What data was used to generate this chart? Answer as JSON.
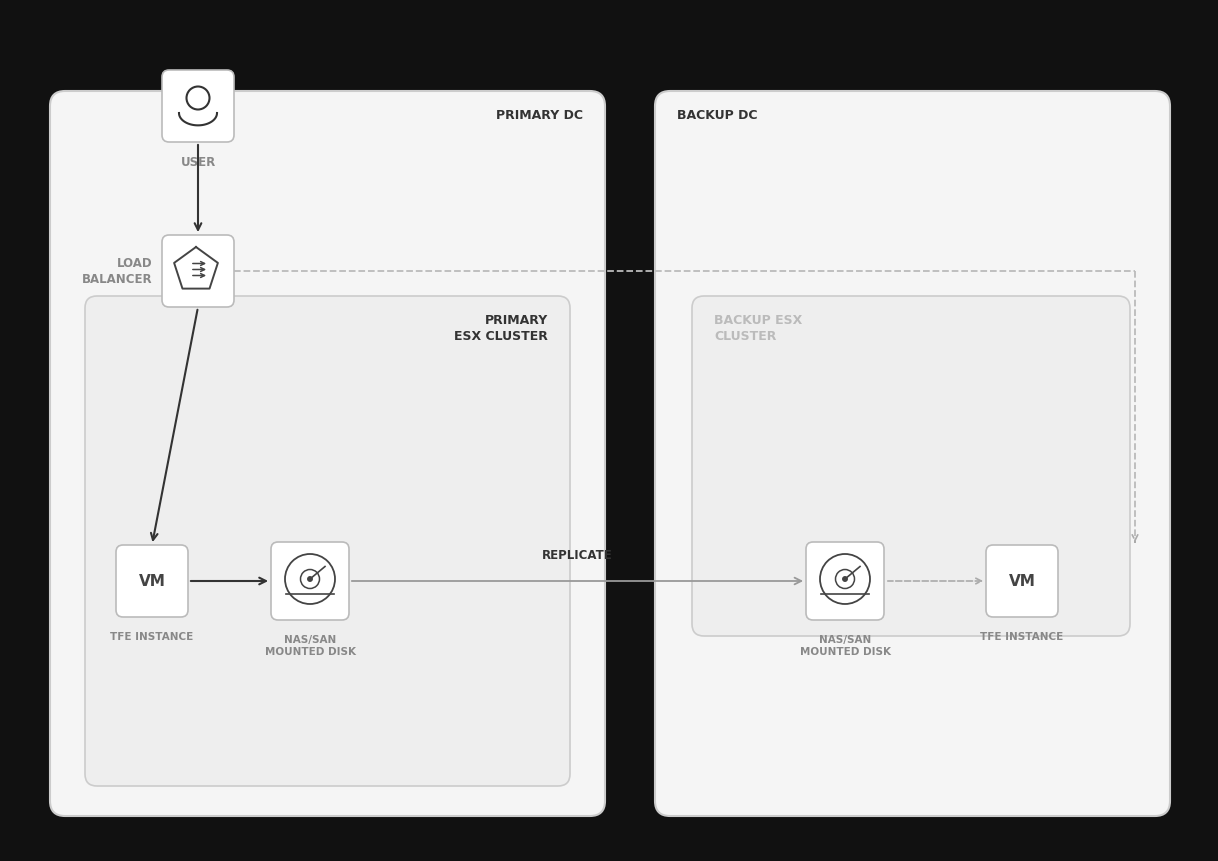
{
  "bg_color": "#111111",
  "box_bg": "#ffffff",
  "box_border": "#cccccc",
  "text_color": "#888888",
  "text_dark": "#333333",
  "arrow_color": "#333333",
  "dashed_color": "#aaaaaa",
  "primary_dc_label": "PRIMARY DC",
  "backup_dc_label": "BACKUP DC",
  "primary_cluster_label": "PRIMARY\nESX CLUSTER",
  "backup_cluster_label": "BACKUP ESX\nCLUSTER",
  "user_label": "USER",
  "lb_label": "LOAD\nBALANCER",
  "vm_label_1": "TFE INSTANCE",
  "disk_label_1": "NAS/SAN\nMOUNTED DISK",
  "disk_label_2": "NAS/SAN\nMOUNTED DISK",
  "vm_label_2": "TFE INSTANCE",
  "replicate_label": "REPLICATE"
}
